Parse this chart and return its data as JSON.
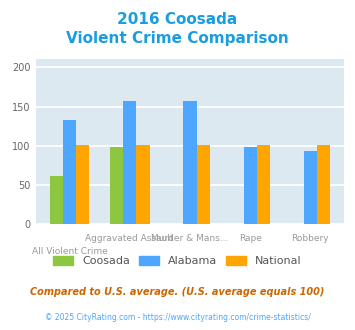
{
  "title_line1": "2016 Coosada",
  "title_line2": "Violent Crime Comparison",
  "title_color": "#1a9de1",
  "categories": [
    "All Violent Crime",
    "Aggravated Assault",
    "Murder & Mans...",
    "Rape",
    "Robbery"
  ],
  "series": {
    "Coosada": [
      62,
      98,
      0,
      0,
      0
    ],
    "Alabama": [
      133,
      157,
      157,
      98,
      94
    ],
    "National": [
      101,
      101,
      101,
      101,
      101
    ]
  },
  "colors": {
    "Coosada": "#8dc63f",
    "Alabama": "#4da6ff",
    "National": "#ffa500"
  },
  "ylim": [
    0,
    210
  ],
  "yticks": [
    0,
    50,
    100,
    150,
    200
  ],
  "plot_bg_color": "#dce9f0",
  "grid_color": "#ffffff",
  "xlabel_color": "#999999",
  "tick_label_color": "#666666",
  "footnote1": "Compared to U.S. average. (U.S. average equals 100)",
  "footnote2": "© 2025 CityRating.com - https://www.cityrating.com/crime-statistics/",
  "footnote1_color": "#cc6600",
  "footnote2_color": "#4da6ff",
  "legend_text_color": "#555555"
}
